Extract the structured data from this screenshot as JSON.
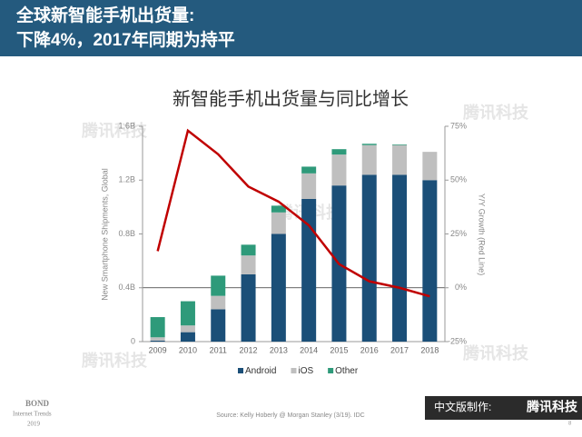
{
  "header": {
    "line1": "全球新智能手机出货量:",
    "line2": "下降4%，2017年同期为持平"
  },
  "chart_data": {
    "type": "bar",
    "stacked": true,
    "title": "新智能手机出货量与同比增长",
    "categories": [
      "2009",
      "2010",
      "2011",
      "2012",
      "2013",
      "2014",
      "2015",
      "2016",
      "2017",
      "2018"
    ],
    "ylabel": "New Smartphone Shipments, Global",
    "y2label": "Y/Y Growth (Red Line)",
    "ylim": [
      0,
      1.6
    ],
    "yticks": [
      0,
      {
        "value": 0.4,
        "label": "0.4B"
      },
      {
        "value": 0.8,
        "label": "0.8B"
      },
      {
        "value": 1.2,
        "label": "1.2B"
      },
      {
        "value": 1.6,
        "label": "1.6B"
      }
    ],
    "y2lim": [
      -25,
      75
    ],
    "y2ticks": [
      {
        "value": -25,
        "label": "-25%"
      },
      {
        "value": 0,
        "label": "0%"
      },
      {
        "value": 25,
        "label": "25%"
      },
      {
        "value": 50,
        "label": "50%"
      },
      {
        "value": 75,
        "label": "75%"
      }
    ],
    "series": [
      {
        "name": "Android",
        "color": "#1b4f78",
        "values": [
          0.007,
          0.07,
          0.24,
          0.5,
          0.8,
          1.06,
          1.16,
          1.24,
          1.24,
          1.2
        ]
      },
      {
        "name": "iOS",
        "color": "#bfbfbf",
        "values": [
          0.025,
          0.05,
          0.1,
          0.14,
          0.16,
          0.19,
          0.23,
          0.22,
          0.22,
          0.21
        ]
      },
      {
        "name": "Other",
        "color": "#2e9a7a",
        "values": [
          0.15,
          0.18,
          0.15,
          0.08,
          0.05,
          0.05,
          0.04,
          0.01,
          0.005,
          0
        ]
      },
      {
        "type": "line",
        "axis": "y2",
        "color": "#c00000",
        "values": [
          17,
          73,
          62,
          47,
          40,
          29,
          11,
          3,
          0,
          -4
        ]
      }
    ],
    "legend": "bottom"
  },
  "footer": {
    "source": "Source: Kelly Hoberly @ Morgan Stanley (3/19). IDC",
    "credit_label": "中文版制作:",
    "credit_name": "腾讯科技",
    "bond": "BOND",
    "bond_sub": "Internet Trends",
    "bond_year": "2019",
    "page": "8",
    "watermark": "腾讯科技"
  }
}
